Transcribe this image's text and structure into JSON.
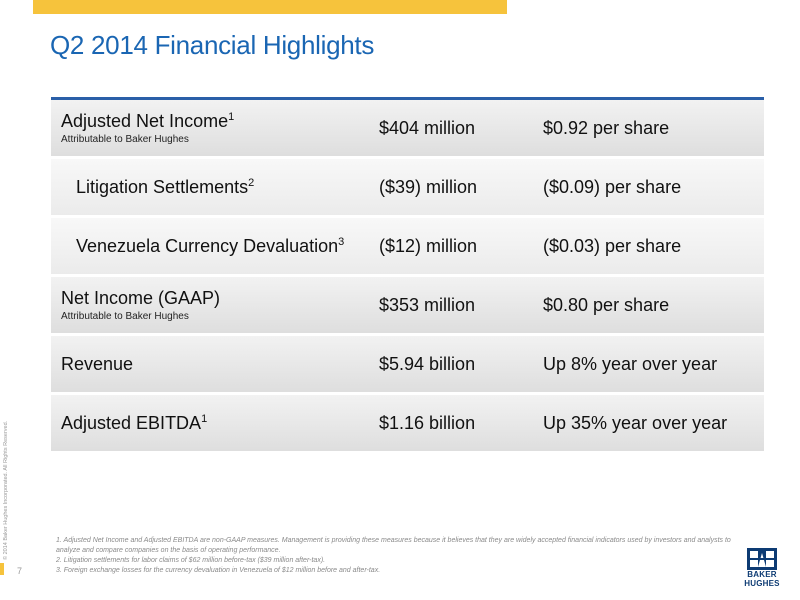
{
  "title": "Q2 2014 Financial Highlights",
  "rows": [
    {
      "label": "Adjusted Net Income",
      "sup": "1",
      "note": "Attributable to Baker Hughes",
      "amount": "$404 million",
      "per": "$0.92 per share"
    },
    {
      "label": "Litigation Settlements",
      "sup": "2",
      "note": "",
      "amount": "($39) million",
      "per": "($0.09) per share"
    },
    {
      "label": "Venezuela Currency Devaluation",
      "sup": "3",
      "note": "",
      "amount": "($12) million",
      "per": "($0.03) per share"
    },
    {
      "label": "Net Income (GAAP)",
      "sup": "",
      "note": "Attributable to Baker Hughes",
      "amount": "$353 million",
      "per": "$0.80 per share"
    },
    {
      "label": "Revenue",
      "sup": "",
      "note": "",
      "amount": "$5.94 billion",
      "per": "Up 8% year over year"
    },
    {
      "label": "Adjusted EBITDA",
      "sup": "1",
      "note": "",
      "amount": "$1.16 billion",
      "per": "Up 35% year over year"
    }
  ],
  "footnotes": [
    "1. Adjusted Net Income and Adjusted EBITDA are non-GAAP measures. Management is providing these measures because it believes that they are widely accepted financial indicators used by investors and analysts to analyze and compare companies on the basis of operating performance.",
    "2. Litigation settlements for labor claims of $62 million before-tax ($39 million after-tax).",
    "3. Foreign exchange losses for the currency devaluation in Venezuela of $12 million before and after-tax."
  ],
  "copyright": "© 2014 Baker Hughes Incorporated. All Rights Reserved.",
  "page_number": "7",
  "logo_text": [
    "BAKER",
    "HUGHES"
  ],
  "colors": {
    "accent_yellow": "#f6c33c",
    "title_blue": "#1a66b3",
    "rule_blue": "#2a5fa8",
    "logo_navy": "#0d3b73"
  }
}
